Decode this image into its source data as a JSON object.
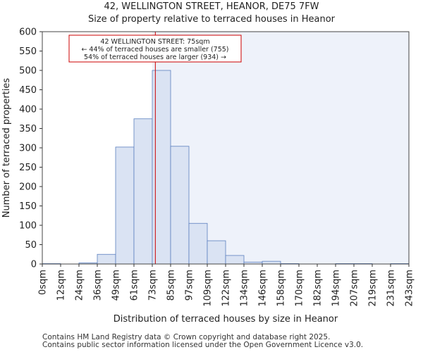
{
  "chart_data": {
    "type": "bar",
    "title": "42, WELLINGTON STREET, HEANOR, DE75 7FW",
    "subtitle": "Size of property relative to terraced houses in Heanor",
    "xlabel": "Distribution of terraced houses by size in Heanor",
    "ylabel": "Number of terraced properties",
    "ylim": [
      0,
      600
    ],
    "yticks": [
      0,
      50,
      100,
      150,
      200,
      250,
      300,
      350,
      400,
      450,
      500,
      550,
      600
    ],
    "xlim": [
      0,
      243
    ],
    "bin_edges": [
      0,
      12,
      24,
      36,
      49,
      61,
      73,
      85,
      97,
      109,
      122,
      134,
      146,
      158,
      170,
      182,
      194,
      207,
      219,
      231,
      243
    ],
    "tick_labels": [
      "0sqm",
      "12sqm",
      "24sqm",
      "36sqm",
      "49sqm",
      "61sqm",
      "73sqm",
      "85sqm",
      "97sqm",
      "109sqm",
      "122sqm",
      "134sqm",
      "146sqm",
      "158sqm",
      "170sqm",
      "182sqm",
      "194sqm",
      "207sqm",
      "219sqm",
      "231sqm",
      "243sqm"
    ],
    "values": [
      1,
      0,
      3,
      25,
      302,
      375,
      500,
      304,
      105,
      60,
      22,
      5,
      7,
      1,
      0,
      0,
      1,
      1,
      0,
      1
    ],
    "property_size": 75,
    "annotation": {
      "line1": "42 WELLINGTON STREET: 75sqm",
      "line2": "← 44% of terraced houses are smaller (755)",
      "line3": "54% of terraced houses are larger (934) →"
    },
    "colors": {
      "bar_fill": "#dae3f3",
      "bar_edge": "#5b7fbf",
      "highlight_bg": "#eef2fa",
      "marker": "#cc0000"
    }
  },
  "footer": {
    "line1": "Contains HM Land Registry data © Crown copyright and database right 2025.",
    "line2": "Contains public sector information licensed under the Open Government Licence v3.0."
  }
}
